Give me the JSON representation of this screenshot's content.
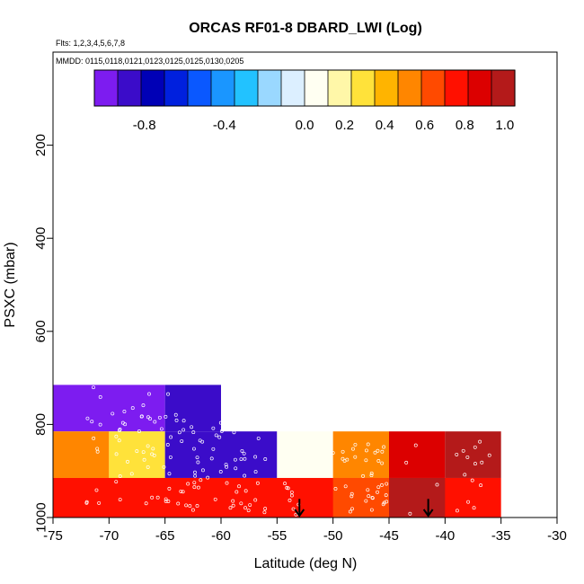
{
  "chart_data": {
    "type": "heatmap",
    "title": "ORCAS RF01-8 DBARD_LWI (Log)",
    "flights_note": "Flts: 1,2,3,4,5,6,7,8",
    "dates_note": "MMDD: 0115,0118,0121,0123,0125,0125,0130,0205",
    "xlabel": "Latitude (deg N)",
    "ylabel": "PSXC (mbar)",
    "xlim": [
      -75,
      -30
    ],
    "ylim": [
      1000,
      0
    ],
    "x_ticks": [
      -75,
      -70,
      -65,
      -60,
      -55,
      -50,
      -45,
      -40,
      -35,
      -30
    ],
    "y_ticks": [
      200,
      400,
      600,
      800,
      1000
    ],
    "colorbar": {
      "range": [
        -1.05,
        1.05
      ],
      "tick_values": [
        -0.8,
        -0.4,
        0.0,
        0.2,
        0.4,
        0.6,
        0.8,
        1.0
      ],
      "tick_labels": [
        "-0.8",
        "-0.4",
        "0.0",
        "0.2",
        "0.4",
        "0.6",
        "0.8",
        "1.0"
      ],
      "colors": [
        "#7d1cf0",
        "#3b0cc9",
        "#0000b6",
        "#0020de",
        "#0a58ff",
        "#1a96ff",
        "#22c2ff",
        "#9ad8ff",
        "#dcefff",
        "#fffff2",
        "#fff7a8",
        "#ffe23a",
        "#ffb400",
        "#ff8600",
        "#ff4a00",
        "#ff1000",
        "#dc0000",
        "#b41a1a"
      ]
    },
    "cells": [
      {
        "lat": [
          -75,
          -65
        ],
        "p": [
          715,
          815
        ],
        "value": -0.95
      },
      {
        "lat": [
          -65,
          -60
        ],
        "p": [
          715,
          815
        ],
        "value": -0.9
      },
      {
        "lat": [
          -75,
          -70
        ],
        "p": [
          815,
          915
        ],
        "value": 0.48
      },
      {
        "lat": [
          -70,
          -65
        ],
        "p": [
          815,
          915
        ],
        "value": 0.28
      },
      {
        "lat": [
          -65,
          -60
        ],
        "p": [
          815,
          915
        ],
        "value": -0.82
      },
      {
        "lat": [
          -60,
          -55
        ],
        "p": [
          815,
          915
        ],
        "value": -0.9
      },
      {
        "lat": [
          -55,
          -50
        ],
        "p": [
          815,
          915
        ],
        "value": 0.08
      },
      {
        "lat": [
          -50,
          -45
        ],
        "p": [
          815,
          915
        ],
        "value": 0.52
      },
      {
        "lat": [
          -45,
          -40
        ],
        "p": [
          815,
          915
        ],
        "value": 0.88
      },
      {
        "lat": [
          -40,
          -35
        ],
        "p": [
          815,
          915
        ],
        "value": 1.0
      },
      {
        "lat": [
          -75,
          -35
        ],
        "p": [
          915,
          1000
        ],
        "value": 0.74
      },
      {
        "lat": [
          -50,
          -45
        ],
        "p": [
          915,
          1000
        ],
        "value": 0.68
      },
      {
        "lat": [
          -45,
          -40
        ],
        "p": [
          915,
          1000
        ],
        "value": 1.05
      }
    ],
    "arrows": [
      {
        "lat": -53,
        "p_from": 960,
        "p_to": 1000
      },
      {
        "lat": -41.5,
        "p_from": 960,
        "p_to": 1000
      }
    ],
    "grid": false
  }
}
